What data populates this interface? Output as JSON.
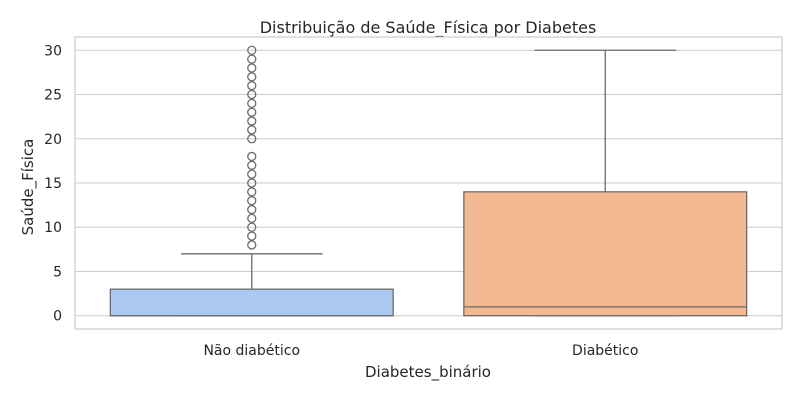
{
  "chart_data": {
    "type": "boxplot",
    "title": "Distribuição de Saúde_Física por Diabetes",
    "xlabel": "Diabetes_binário",
    "ylabel": "Saúde_Física",
    "ylim": [
      -1.5,
      31.5
    ],
    "yticks": [
      0,
      5,
      10,
      15,
      20,
      25,
      30
    ],
    "grid": true,
    "categories": [
      "Não diabético",
      "Diabético"
    ],
    "colors": [
      "#abc9f0",
      "#f1b891"
    ],
    "boxes": [
      {
        "category": "Não diabético",
        "min": 0,
        "q1": 0,
        "median": 0,
        "q3": 3,
        "max": 7,
        "outliers": [
          8,
          9,
          10,
          11,
          12,
          13,
          14,
          15,
          16,
          17,
          18,
          20,
          21,
          22,
          23,
          24,
          25,
          26,
          27,
          28,
          29,
          30
        ]
      },
      {
        "category": "Diabético",
        "min": 0,
        "q1": 0,
        "median": 1,
        "q3": 14,
        "max": 30,
        "outliers": []
      }
    ]
  }
}
